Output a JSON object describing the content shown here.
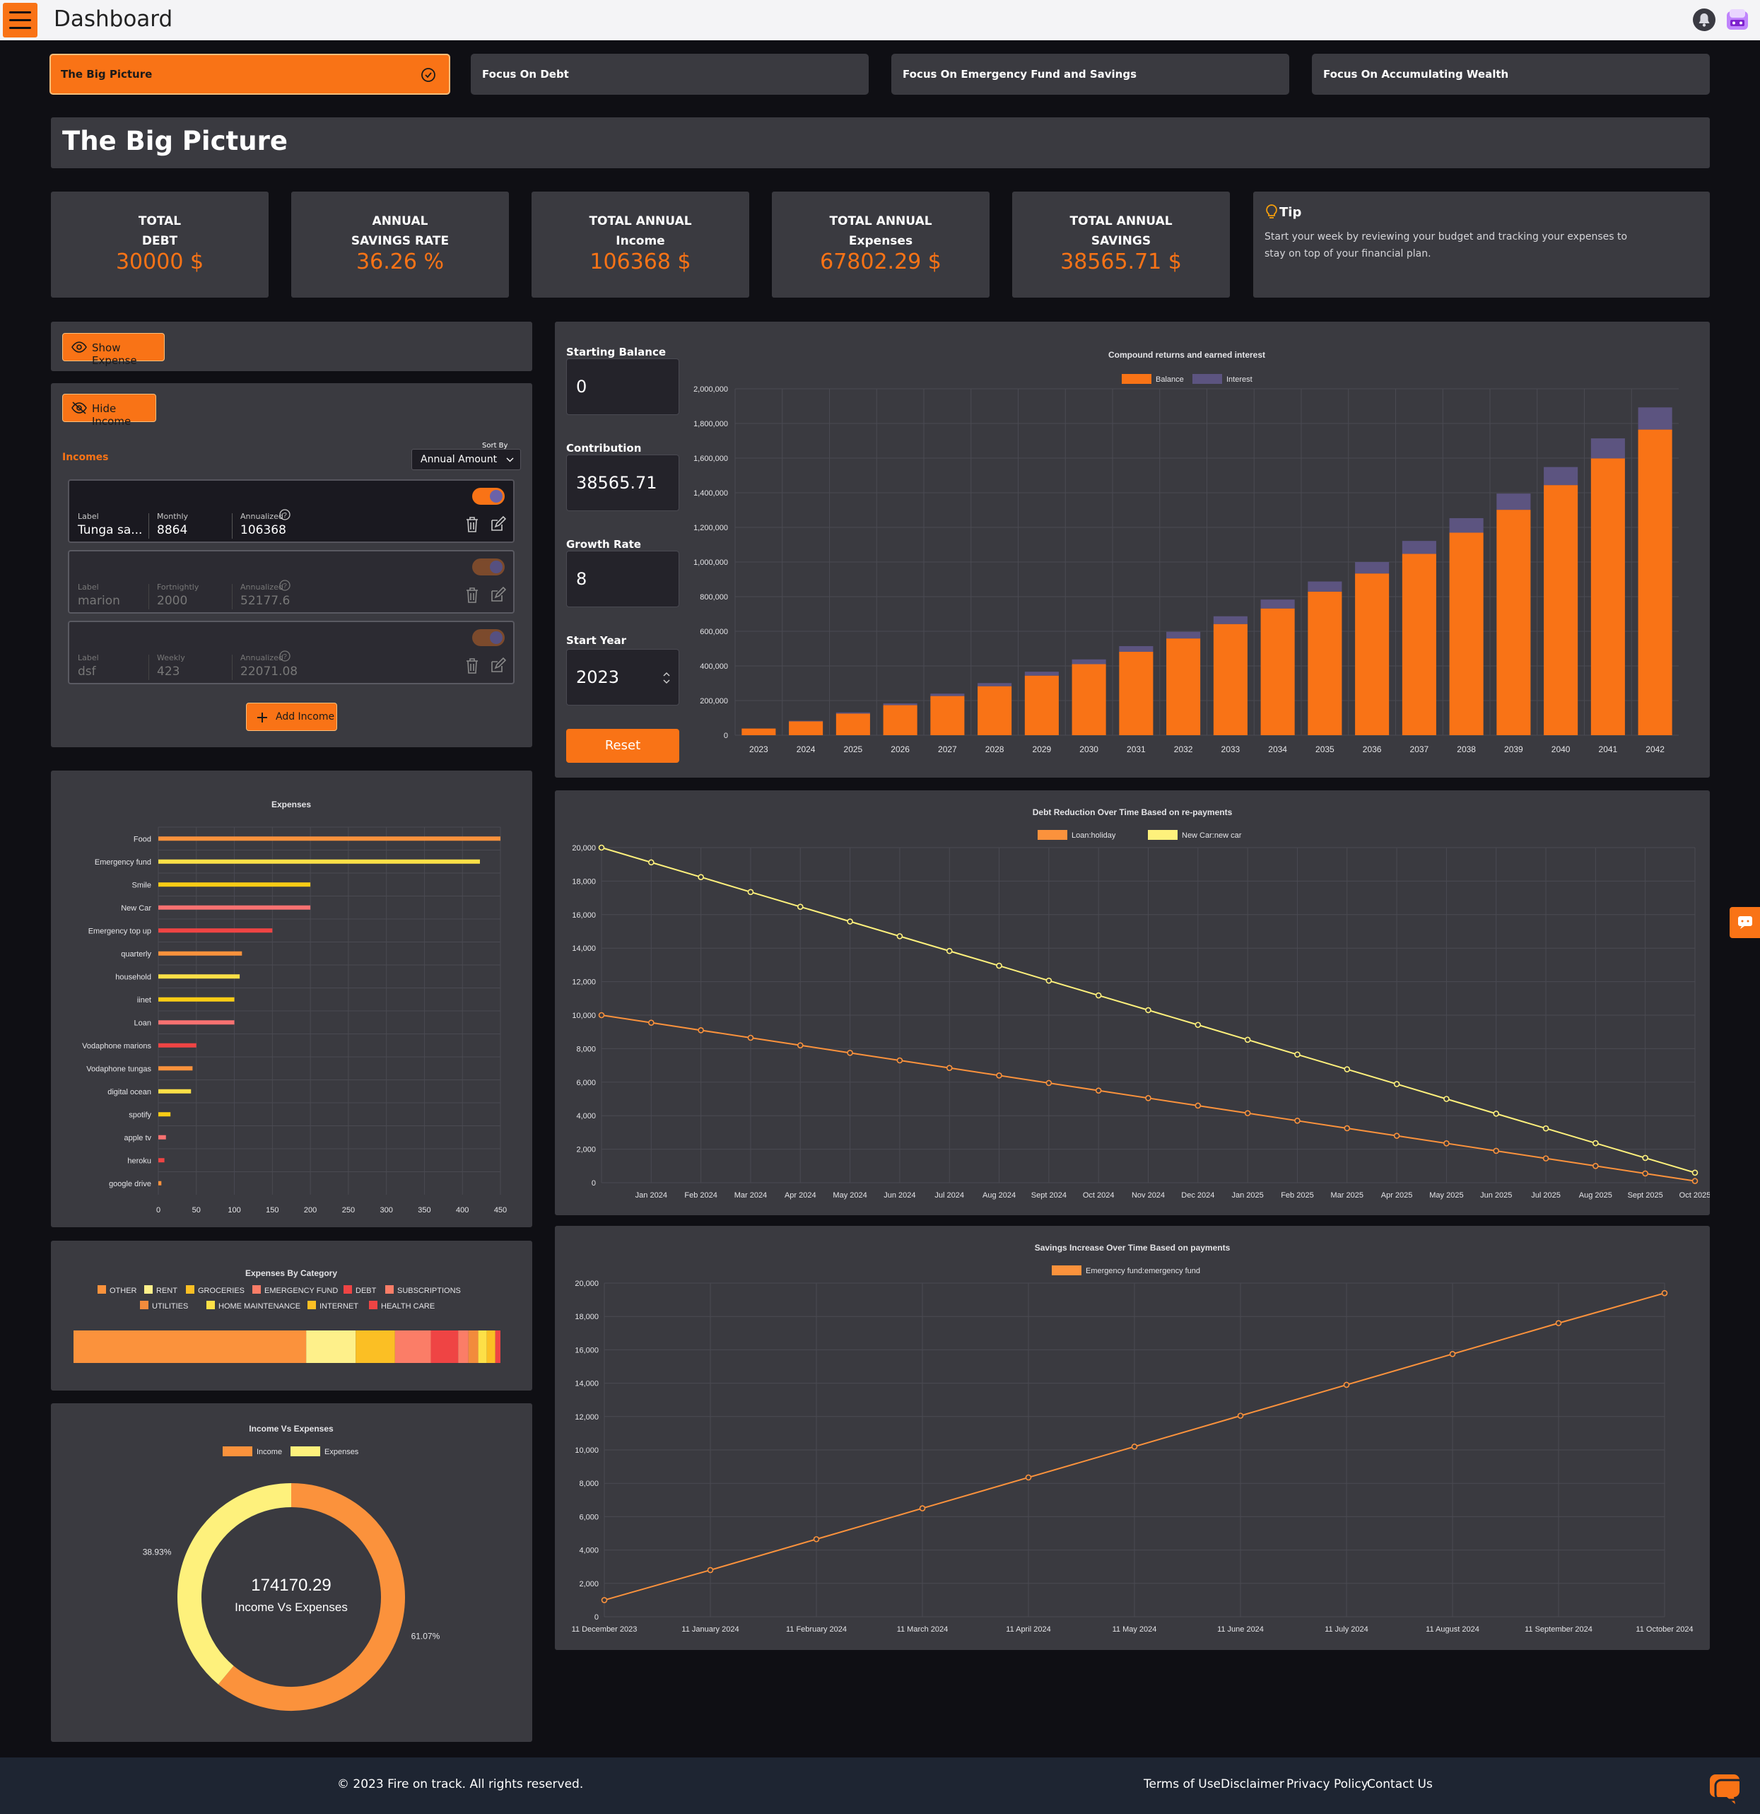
{
  "app": {
    "title": "Dashboard"
  },
  "tabs": [
    {
      "label": "The Big Picture",
      "active": true
    },
    {
      "label": "Focus On Debt"
    },
    {
      "label": "Focus On Emergency Fund and Savings"
    },
    {
      "label": "Focus On Accumulating Wealth"
    }
  ],
  "page": {
    "title": "The Big Picture"
  },
  "stats": [
    {
      "l1": "TOTAL",
      "l2": "DEBT",
      "value": "30000 $"
    },
    {
      "l1": "ANNUAL",
      "l2": "SAVINGS RATE",
      "value": "36.26 %"
    },
    {
      "l1": "TOTAL ANNUAL",
      "l2": "Income",
      "value": "106368 $"
    },
    {
      "l1": "TOTAL ANNUAL",
      "l2": "Expenses",
      "value": "67802.29 $"
    },
    {
      "l1": "TOTAL ANNUAL",
      "l2": "SAVINGS",
      "value": "38565.71 $"
    }
  ],
  "tip": {
    "title": "Tip",
    "text": "Start your week by reviewing your budget and tracking your expenses to stay on top of your financial plan."
  },
  "buttons": {
    "show_expense": "Show Expense",
    "hide_income": "Hide Income",
    "add_income": "Add Income",
    "reset": "Reset"
  },
  "incomes": {
    "heading": "Incomes",
    "sort_label": "Sort By",
    "sort_value": "Annual Amount",
    "label_hdr": "Label",
    "annualized_hdr": "Annualized",
    "items": [
      {
        "label": "Tunga sa...",
        "freq": "Monthly",
        "amount": "8864",
        "annual": "106368"
      },
      {
        "label": "marion",
        "freq": "Fortnightly",
        "amount": "2000",
        "annual": "52177.6"
      },
      {
        "label": "dsf",
        "freq": "Weekly",
        "amount": "423",
        "annual": "22071.08"
      }
    ]
  },
  "compound": {
    "starting_label": "Starting Balance",
    "starting": "0",
    "contribution_label": "Contribution",
    "contribution": "38565.71",
    "growth_label": "Growth Rate",
    "growth": "8",
    "year_label": "Start Year",
    "year": "2023"
  },
  "footer": {
    "copyright": "© 2023 Fire on track. All rights reserved.",
    "links": [
      "Terms of Use",
      "Disclaimer",
      "Privacy Policy",
      "Contact Us"
    ]
  },
  "colors": {
    "accent": "#f97316",
    "panel": "#3a3a40",
    "bg": "#0f0f14"
  },
  "chart_data": [
    {
      "type": "bar",
      "title": "Compound returns and earned interest",
      "stacked": true,
      "categories": [
        "2023",
        "2024",
        "2025",
        "2026",
        "2027",
        "2028",
        "2029",
        "2030",
        "2031",
        "2032",
        "2033",
        "2034",
        "2035",
        "2036",
        "2037",
        "2038",
        "2039",
        "2040",
        "2041",
        "2042"
      ],
      "series": [
        {
          "name": "Balance",
          "color": "#f97316",
          "values": [
            38566,
            80217,
            125199,
            173780,
            226248,
            282914,
            344113,
            410209,
            481591,
            558684,
            641945,
            731866,
            828981,
            933866,
            1047140,
            1169478,
            1301602,
            1444296,
            1598406,
            1764845
          ]
        },
        {
          "name": "Interest",
          "color": "#5c5480",
          "values": [
            0,
            3085,
            6416,
            10016,
            13903,
            18100,
            22633,
            27529,
            32817,
            38527,
            44695,
            51355,
            58547,
            66318,
            74709,
            83772,
            93560,
            104125,
            115536,
            127873
          ]
        }
      ],
      "ylim": [
        0,
        2000000
      ],
      "yticks": [
        0,
        200000,
        400000,
        600000,
        800000,
        1000000,
        1200000,
        1400000,
        1600000,
        1800000,
        2000000
      ]
    },
    {
      "type": "bar",
      "orientation": "horizontal",
      "title": "Expenses",
      "categories": [
        "Food",
        "Emergency fund",
        "Smile",
        "New Car",
        "Emergency top up",
        "quarterly",
        "household",
        "iinet",
        "Loan",
        "Vodaphone marions",
        "Vodaphone tungas",
        "digital ocean",
        "spotify",
        "apple tv",
        "heroku",
        "google  drive"
      ],
      "values": [
        450,
        423,
        200,
        200,
        150,
        110,
        107,
        100,
        100,
        50,
        45,
        43,
        16,
        10,
        8,
        4
      ],
      "colors": [
        "#fb923c",
        "#fde047",
        "#facc15",
        "#f87171",
        "#ef4444",
        "#fb923c",
        "#fde047",
        "#facc15",
        "#f87171",
        "#ef4444",
        "#fb923c",
        "#fde047",
        "#facc15",
        "#f87171",
        "#ef4444",
        "#fb923c"
      ],
      "xlim": [
        0,
        450
      ],
      "xticks": [
        0,
        50,
        100,
        150,
        200,
        250,
        300,
        350,
        400,
        450
      ]
    },
    {
      "type": "bar",
      "orientation": "horizontal",
      "stacked": true,
      "title": "Expenses By Category",
      "series": [
        {
          "name": "OTHER",
          "value": 54.5,
          "color": "#fb923c"
        },
        {
          "name": "RENT",
          "value": 11.6,
          "color": "#fef08a"
        },
        {
          "name": "GROCERIES",
          "value": 9.2,
          "color": "#fbbf24"
        },
        {
          "name": "EMERGENCY FUND",
          "value": 8.4,
          "color": "#fb7d67"
        },
        {
          "name": "DEBT",
          "value": 6.4,
          "color": "#ef4444"
        },
        {
          "name": "SUBSCRIPTIONS",
          "value": 2.4,
          "color": "#fb7d67"
        },
        {
          "name": "UTILITIES",
          "value": 2.3,
          "color": "#f28b3c"
        },
        {
          "name": "HOME MAINTENANCE",
          "value": 2.0,
          "color": "#fde047"
        },
        {
          "name": "INTERNET",
          "value": 2.0,
          "color": "#fbbf24"
        },
        {
          "name": "HEALTH CARE",
          "value": 1.2,
          "color": "#ef4444"
        }
      ]
    },
    {
      "type": "pie",
      "donut": true,
      "title": "Income Vs Expenses",
      "center_value": "174170.29",
      "center_label": "Income Vs Expenses",
      "slices": [
        {
          "name": "Income",
          "value": 61.07,
          "label": "61.07%",
          "color": "#fb923c"
        },
        {
          "name": "Expenses",
          "value": 38.93,
          "label": "38.93%",
          "color": "#fef17c"
        }
      ]
    },
    {
      "type": "line",
      "title": "Debt Reduction Over Time Based on re-payments",
      "x": [
        "Dec 2023",
        "Jan 2024",
        "Feb 2024",
        "Mar 2024",
        "Apr 2024",
        "May 2024",
        "Jun 2024",
        "Jul 2024",
        "Aug 2024",
        "Sept 2024",
        "Oct 2024",
        "Nov 2024",
        "Dec 2024",
        "Jan 2025",
        "Feb 2025",
        "Mar 2025",
        "Apr 2025",
        "May 2025",
        "Jun 2025",
        "Jul 2025",
        "Aug 2025",
        "Sept 2025",
        "Oct 2025"
      ],
      "xticks": [
        "Jan 2024",
        "Feb 2024",
        "Mar 2024",
        "Apr 2024",
        "May 2024",
        "Jun 2024",
        "Jul 2024",
        "Aug 2024",
        "Sept 2024",
        "Oct 2024",
        "Nov 2024",
        "Dec 2024",
        "Jan 2025",
        "Feb 2025",
        "Mar 2025",
        "Apr 2025",
        "May 2025",
        "Jun 2025",
        "Jul 2025",
        "Aug 2025",
        "Sept 2025",
        "Oct 2025"
      ],
      "series": [
        {
          "name": "Loan:holiday",
          "color": "#fb923c",
          "values": [
            10000,
            9550,
            9100,
            8650,
            8200,
            7750,
            7300,
            6850,
            6400,
            5950,
            5500,
            5050,
            4600,
            4150,
            3700,
            3250,
            2800,
            2350,
            1900,
            1450,
            1000,
            550,
            100
          ]
        },
        {
          "name": "New Car:new car",
          "color": "#fef17c",
          "values": [
            20000,
            19120,
            18240,
            17350,
            16470,
            15590,
            14710,
            13830,
            12950,
            12060,
            11180,
            10300,
            9420,
            8530,
            7650,
            6770,
            5890,
            5000,
            4120,
            3240,
            2360,
            1480,
            600
          ]
        }
      ],
      "ylim": [
        0,
        20000
      ],
      "yticks": [
        0,
        2000,
        4000,
        6000,
        8000,
        10000,
        12000,
        14000,
        16000,
        18000,
        20000
      ]
    },
    {
      "type": "line",
      "title": "Savings Increase Over Time Based on payments",
      "x": [
        "11 December 2023",
        "11 January 2024",
        "11 February 2024",
        "11 March 2024",
        "11 April 2024",
        "11 May 2024",
        "11 June 2024",
        "11 July 2024",
        "11 August 2024",
        "11 September 2024",
        "11 October 2024"
      ],
      "series": [
        {
          "name": "Emergency fund:emergency fund",
          "color": "#fb923c",
          "values": [
            1000,
            2800,
            4650,
            6500,
            8350,
            10200,
            12050,
            13900,
            15750,
            17600,
            19400
          ]
        }
      ],
      "ylim": [
        0,
        20000
      ],
      "yticks": [
        0,
        2000,
        4000,
        6000,
        8000,
        10000,
        12000,
        14000,
        16000,
        18000,
        20000
      ]
    }
  ]
}
